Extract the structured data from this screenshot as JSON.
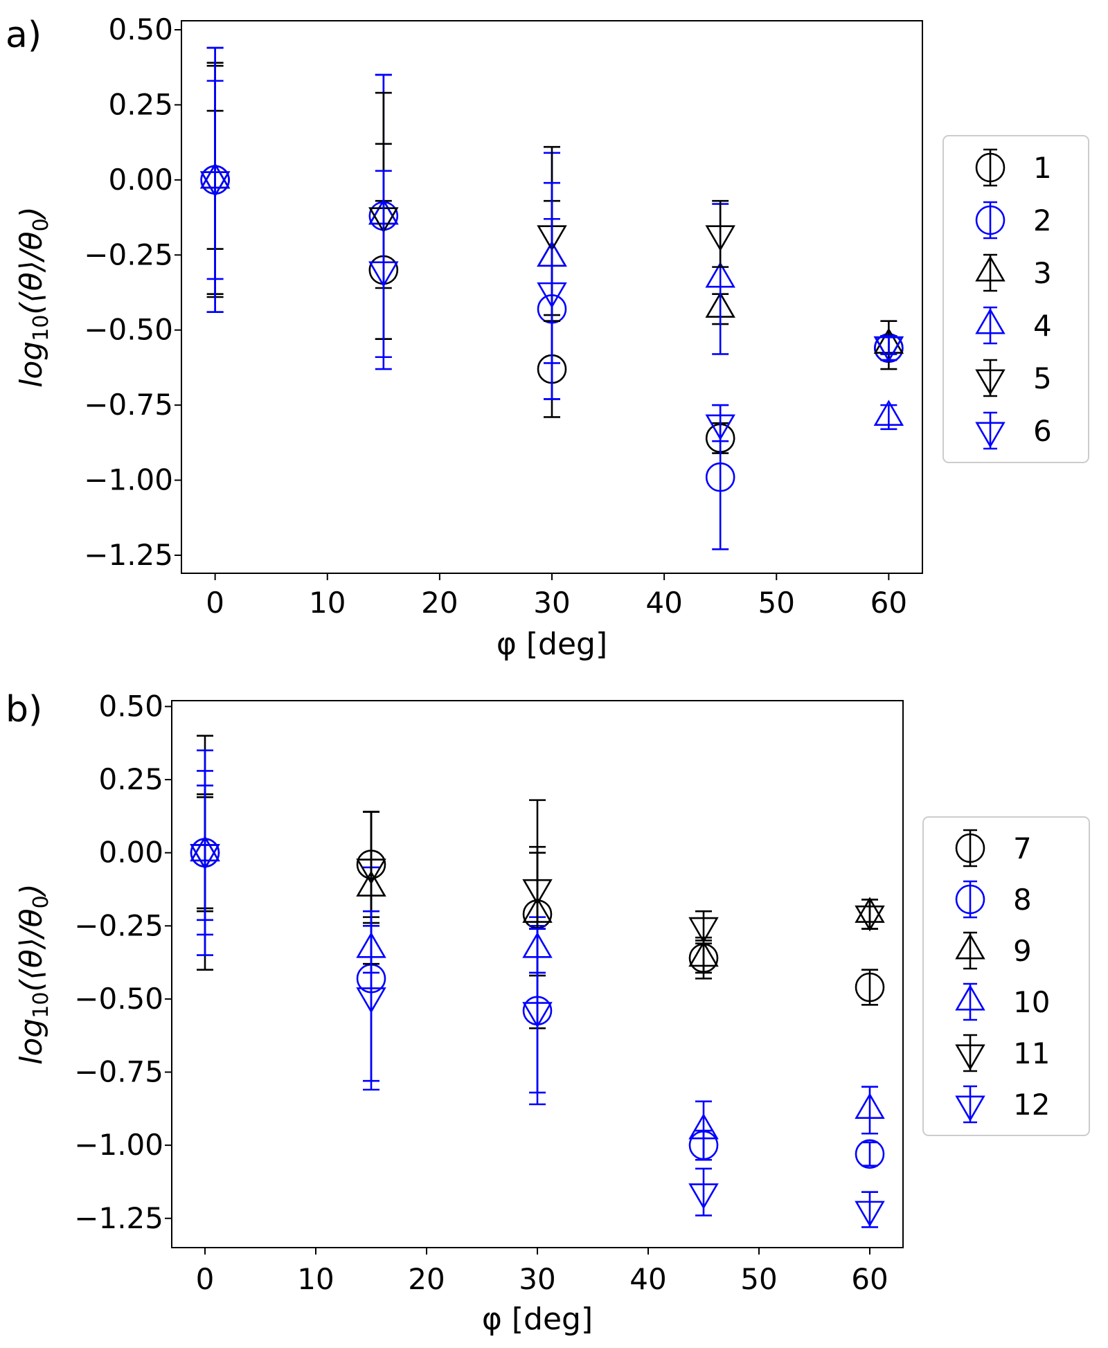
{
  "figure": {
    "colors": {
      "black": "#000000",
      "blue": "#0000ff"
    }
  },
  "chart_data": [
    {
      "type": "scatter",
      "panel_label": "a)",
      "title": "",
      "xlabel": "φ [deg]",
      "ylabel_base": "log",
      "ylabel_sub": "10",
      "ylabel_rest": "(⟨θ⟩/θ",
      "ylabel_sub2": "0",
      "ylabel_close": ")",
      "xlim": [
        -3,
        63
      ],
      "ylim": [
        -1.31,
        0.53
      ],
      "xticks": [
        0,
        10,
        20,
        30,
        40,
        50,
        60
      ],
      "xtick_labels": [
        "0",
        "10",
        "20",
        "30",
        "40",
        "50",
        "60"
      ],
      "yticks": [
        0.5,
        0.25,
        0.0,
        -0.25,
        -0.5,
        -0.75,
        -1.0,
        -1.25
      ],
      "ytick_labels": [
        "0.50",
        "0.25",
        "0.00",
        "−0.25",
        "−0.50",
        "−0.75",
        "−1.00",
        "−1.25"
      ],
      "legend_position": "right",
      "series": [
        {
          "name": "1",
          "marker": "circle",
          "color": "#000000",
          "points": [
            [
              0,
              0.0,
              0.38
            ],
            [
              15,
              -0.3,
              0.23
            ],
            [
              30,
              -0.63,
              0.16
            ],
            [
              45,
              -0.86,
              0.05
            ],
            [
              60,
              -0.56,
              0.04
            ]
          ]
        },
        {
          "name": "2",
          "marker": "circle",
          "color": "#0000ff",
          "points": [
            [
              0,
              0.0,
              0.44
            ],
            [
              15,
              -0.12,
              0.47
            ],
            [
              30,
              -0.43,
              0.3
            ],
            [
              45,
              -0.99,
              0.24
            ],
            [
              60,
              -0.56,
              0.04
            ]
          ]
        },
        {
          "name": "3",
          "marker": "triangle-up",
          "color": "#000000",
          "points": [
            [
              0,
              0.0,
              0.39
            ],
            [
              15,
              -0.12,
              0.24
            ],
            [
              30,
              -0.26,
              0.19
            ],
            [
              45,
              -0.43,
              0.05
            ],
            [
              60,
              -0.55,
              0.08
            ]
          ]
        },
        {
          "name": "4",
          "marker": "triangle-up",
          "color": "#0000ff",
          "points": [
            [
              0,
              0.0,
              0.44
            ],
            [
              15,
              -0.12,
              0.47
            ],
            [
              30,
              -0.26,
              0.35
            ],
            [
              45,
              -0.33,
              0.25
            ],
            [
              60,
              -0.79,
              0.04
            ]
          ]
        },
        {
          "name": "5",
          "marker": "triangle-down",
          "color": "#000000",
          "points": [
            [
              0,
              0.0,
              0.23
            ],
            [
              15,
              -0.12,
              0.41
            ],
            [
              30,
              -0.18,
              0.29
            ],
            [
              45,
              -0.18,
              0.11
            ],
            [
              60,
              -0.55,
              0.03
            ]
          ]
        },
        {
          "name": "6",
          "marker": "triangle-down",
          "color": "#0000ff",
          "points": [
            [
              0,
              0.0,
              0.33
            ],
            [
              15,
              -0.3,
              0.33
            ],
            [
              30,
              -0.37,
              0.36
            ],
            [
              45,
              -0.81,
              0.06
            ],
            [
              60,
              -0.55,
              0.03
            ]
          ]
        }
      ]
    },
    {
      "type": "scatter",
      "panel_label": "b)",
      "title": "",
      "xlabel": "φ [deg]",
      "ylabel_base": "log",
      "ylabel_sub": "10",
      "ylabel_rest": "(⟨θ⟩/θ",
      "ylabel_sub2": "0",
      "ylabel_close": ")",
      "xlim": [
        -3,
        63
      ],
      "ylim": [
        -1.35,
        0.52
      ],
      "xticks": [
        0,
        10,
        20,
        30,
        40,
        50,
        60
      ],
      "xtick_labels": [
        "0",
        "10",
        "20",
        "30",
        "40",
        "50",
        "60"
      ],
      "yticks": [
        0.5,
        0.25,
        0.0,
        -0.25,
        -0.5,
        -0.75,
        -1.0,
        -1.25
      ],
      "ytick_labels": [
        "0.50",
        "0.25",
        "0.00",
        "−0.25",
        "−0.50",
        "−0.75",
        "−1.00",
        "−1.25"
      ],
      "legend_position": "right",
      "series": [
        {
          "name": "7",
          "marker": "circle",
          "color": "#000000",
          "points": [
            [
              0,
              0.0,
              0.4
            ],
            [
              15,
              -0.04,
              0.18
            ],
            [
              30,
              -0.21,
              0.39
            ],
            [
              45,
              -0.36,
              0.07
            ],
            [
              60,
              -0.46,
              0.06
            ]
          ]
        },
        {
          "name": "8",
          "marker": "circle",
          "color": "#0000ff",
          "points": [
            [
              0,
              0.0,
              0.35
            ],
            [
              15,
              -0.43,
              0.38
            ],
            [
              30,
              -0.54,
              0.32
            ],
            [
              45,
              -1.0,
              0.05
            ],
            [
              60,
              -1.03,
              0.04
            ]
          ]
        },
        {
          "name": "9",
          "marker": "triangle-up",
          "color": "#000000",
          "points": [
            [
              0,
              0.0,
              0.2
            ],
            [
              15,
              -0.12,
              0.26
            ],
            [
              30,
              -0.21,
              0.21
            ],
            [
              45,
              -0.36,
              0.05
            ],
            [
              60,
              -0.21,
              0.05
            ]
          ]
        },
        {
          "name": "10",
          "marker": "triangle-up",
          "color": "#0000ff",
          "points": [
            [
              0,
              0.0,
              0.28
            ],
            [
              15,
              -0.33,
              0.08
            ],
            [
              30,
              -0.33,
              0.08
            ],
            [
              45,
              -0.95,
              0.1
            ],
            [
              60,
              -0.88,
              0.08
            ]
          ]
        },
        {
          "name": "11",
          "marker": "triangle-down",
          "color": "#000000",
          "points": [
            [
              0,
              0.0,
              0.19
            ],
            [
              15,
              -0.05,
              0.19
            ],
            [
              30,
              -0.12,
              0.14
            ],
            [
              45,
              -0.25,
              0.05
            ],
            [
              60,
              -0.21,
              0.05
            ]
          ]
        },
        {
          "name": "12",
          "marker": "triangle-down",
          "color": "#0000ff",
          "points": [
            [
              0,
              0.0,
              0.23
            ],
            [
              15,
              -0.49,
              0.29
            ],
            [
              30,
              -0.54,
              0.28
            ],
            [
              45,
              -1.16,
              0.08
            ],
            [
              60,
              -1.22,
              0.06
            ]
          ]
        }
      ]
    }
  ]
}
